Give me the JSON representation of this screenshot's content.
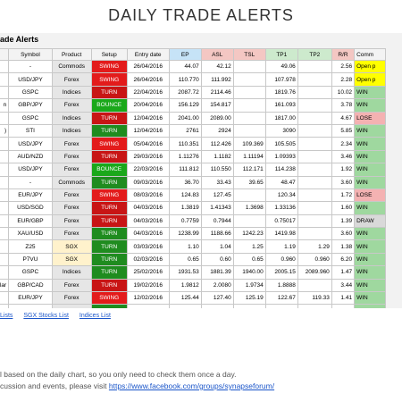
{
  "page": {
    "title": "DAILY TRADE ALERTS"
  },
  "sheet": {
    "title": "ade Alerts",
    "headers": {
      "symbol": "Symbol",
      "product": "Product",
      "setup": "Setup",
      "entry_date": "Entry date",
      "ep": "EP",
      "asl": "ASL",
      "tsl": "TSL",
      "tp1": "TP1",
      "tp2": "TP2",
      "rr": "R/R",
      "comments": "Comm"
    },
    "rows": [
      {
        "name": "",
        "symbol": "-",
        "product": "Commods",
        "setup": "SWING",
        "date": "26/04/2016",
        "ep": "44.07",
        "asl": "42.12",
        "tsl": "",
        "tp1": "49.06",
        "tp2": "",
        "rr": "2.56",
        "comment": "Open p",
        "ctype": "open",
        "stype": "swing",
        "ptype": "forex"
      },
      {
        "name": "",
        "symbol": "USD/JPY",
        "product": "Forex",
        "setup": "SWING",
        "date": "26/04/2016",
        "ep": "110.770",
        "asl": "111.992",
        "tsl": "",
        "tp1": "107.978",
        "tp2": "",
        "rr": "2.28",
        "comment": "Open p",
        "ctype": "open",
        "stype": "swing",
        "ptype": "forex"
      },
      {
        "name": "",
        "symbol": "GSPC",
        "product": "Indices",
        "setup": "TURN",
        "date": "22/04/2016",
        "ep": "2087.72",
        "asl": "2114.46",
        "tsl": "",
        "tp1": "1819.76",
        "tp2": "",
        "rr": "10.02",
        "comment": "WIN",
        "ctype": "win",
        "stype": "turn",
        "ptype": "indices"
      },
      {
        "name": "n",
        "symbol": "GBP/JPY",
        "product": "Forex",
        "setup": "BOUNCE",
        "date": "20/04/2016",
        "ep": "156.129",
        "asl": "154.817",
        "tsl": "",
        "tp1": "161.093",
        "tp2": "",
        "rr": "3.78",
        "comment": "WIN",
        "ctype": "win",
        "stype": "bounce",
        "ptype": "forex"
      },
      {
        "name": "",
        "symbol": "GSPC",
        "product": "Indices",
        "setup": "TURN",
        "date": "12/04/2016",
        "ep": "2041.00",
        "asl": "2089.00",
        "tsl": "",
        "tp1": "1817.00",
        "tp2": "",
        "rr": "4.67",
        "comment": "LOSE",
        "ctype": "lose",
        "stype": "turn",
        "ptype": "indices"
      },
      {
        "name": ")",
        "symbol": "STI",
        "product": "Indices",
        "setup": "TURN",
        "date": "12/04/2016",
        "ep": "2761",
        "asl": "2924",
        "tsl": "",
        "tp1": "3090",
        "tp2": "",
        "rr": "5.85",
        "comment": "WIN",
        "ctype": "win",
        "stype": "turng",
        "ptype": "indices"
      },
      {
        "name": "",
        "symbol": "USD/JPY",
        "product": "Forex",
        "setup": "SWING",
        "date": "05/04/2016",
        "ep": "110.351",
        "asl": "112.426",
        "tsl": "109.369",
        "tp1": "105.505",
        "tp2": "",
        "rr": "2.34",
        "comment": "WIN",
        "ctype": "win",
        "stype": "swing",
        "ptype": "forex"
      },
      {
        "name": "",
        "symbol": "AUD/NZD",
        "product": "Forex",
        "setup": "TURN",
        "date": "29/03/2016",
        "ep": "1.11276",
        "asl": "1.1182",
        "tsl": "1.11194",
        "tp1": "1.09393",
        "tp2": "",
        "rr": "3.46",
        "comment": "WIN",
        "ctype": "win",
        "stype": "turn",
        "ptype": "forex"
      },
      {
        "name": "",
        "symbol": "USD/JPY",
        "product": "Forex",
        "setup": "BOUNCE",
        "date": "22/03/2016",
        "ep": "111.812",
        "asl": "110.550",
        "tsl": "112.171",
        "tp1": "114.238",
        "tp2": "",
        "rr": "1.92",
        "comment": "WIN",
        "ctype": "win",
        "stype": "bounce",
        "ptype": "forex"
      },
      {
        "name": "",
        "symbol": "-",
        "product": "Commods",
        "setup": "TURN",
        "date": "09/03/2016",
        "ep": "36.70",
        "asl": "33.43",
        "tsl": "39.65",
        "tp1": "48.47",
        "tp2": "",
        "rr": "3.60",
        "comment": "WIN",
        "ctype": "win",
        "stype": "turng",
        "ptype": "forex"
      },
      {
        "name": "",
        "symbol": "EUR/JPY",
        "product": "Forex",
        "setup": "SWING",
        "date": "08/03/2016",
        "ep": "124.83",
        "asl": "127.45",
        "tsl": "",
        "tp1": "120.34",
        "tp2": "",
        "rr": "1.72",
        "comment": "LOSE",
        "ctype": "lose",
        "stype": "swing",
        "ptype": "forex"
      },
      {
        "name": "",
        "symbol": "USD/SGD",
        "product": "Forex",
        "setup": "TURN",
        "date": "04/03/2016",
        "ep": "1.3819",
        "asl": "1.41343",
        "tsl": "1.3698",
        "tp1": "1.33136",
        "tp2": "",
        "rr": "1.60",
        "comment": "WIN",
        "ctype": "win",
        "stype": "turn",
        "ptype": "forex"
      },
      {
        "name": "",
        "symbol": "EUR/GBP",
        "product": "Forex",
        "setup": "TURN",
        "date": "04/03/2016",
        "ep": "0.7759",
        "asl": "0.7944",
        "tsl": "",
        "tp1": "0.75017",
        "tp2": "",
        "rr": "1.39",
        "comment": "DRAW",
        "ctype": "draw",
        "stype": "turn",
        "ptype": "forex"
      },
      {
        "name": "",
        "symbol": "XAU/USD",
        "product": "Forex",
        "setup": "TURN",
        "date": "04/03/2016",
        "ep": "1238.99",
        "asl": "1188.66",
        "tsl": "1242.23",
        "tp1": "1419.98",
        "tp2": "",
        "rr": "3.60",
        "comment": "WIN",
        "ctype": "win",
        "stype": "turng",
        "ptype": "forex"
      },
      {
        "name": "",
        "symbol": "Z25",
        "product": "SGX",
        "setup": "TURN",
        "date": "03/03/2016",
        "ep": "1.10",
        "asl": "1.04",
        "tsl": "1.25",
        "tp1": "1.19",
        "tp2": "1.29",
        "rr": "1.38",
        "comment": "WIN",
        "ctype": "win",
        "stype": "turng",
        "ptype": "sgx"
      },
      {
        "name": "",
        "symbol": "P7VU",
        "product": "SGX",
        "setup": "TURN",
        "date": "02/03/2016",
        "ep": "0.65",
        "asl": "0.60",
        "tsl": "0.65",
        "tp1": "0.960",
        "tp2": "0.960",
        "rr": "6.20",
        "comment": "WIN",
        "ctype": "win",
        "stype": "turng",
        "ptype": "sgx"
      },
      {
        "name": "",
        "symbol": "GSPC",
        "product": "Indices",
        "setup": "TURN",
        "date": "25/02/2016",
        "ep": "1931.53",
        "asl": "1881.39",
        "tsl": "1940.00",
        "tp1": "2005.15",
        "tp2": "2089.960",
        "rr": "1.47",
        "comment": "WIN",
        "ctype": "win",
        "stype": "turng",
        "ptype": "indices"
      },
      {
        "name": "ollar",
        "symbol": "GBP/CAD",
        "product": "Forex",
        "setup": "TURN",
        "date": "19/02/2016",
        "ep": "1.9812",
        "asl": "2.0080",
        "tsl": "1.9734",
        "tp1": "1.8888",
        "tp2": "",
        "rr": "3.44",
        "comment": "WIN",
        "ctype": "win",
        "stype": "turn",
        "ptype": "forex"
      },
      {
        "name": "",
        "symbol": "EUR/JPY",
        "product": "Forex",
        "setup": "SWING",
        "date": "12/02/2016",
        "ep": "125.44",
        "asl": "127.40",
        "tsl": "125.19",
        "tp1": "122.67",
        "tp2": "119.33",
        "rr": "1.41",
        "comment": "WIN",
        "ctype": "win",
        "stype": "swing",
        "ptype": "forex"
      },
      {
        "name": "",
        "symbol": "XAU/USD",
        "product": "Forex",
        "setup": "TURN",
        "date": "10/02/2016",
        "ep": "1211.45",
        "asl": "1177.40",
        "tsl": "1211.85",
        "tp1": "1299.47",
        "tp2": "",
        "rr": "1.28",
        "comment": "WIN",
        "ctype": "win",
        "stype": "turng",
        "ptype": "forex"
      }
    ]
  },
  "tabs": [
    "Lists",
    "SGX Stocks List",
    "Indices List"
  ],
  "notes": {
    "line1": "l based on the daily chart, so you only need to check them once a day.",
    "line2_prefix": "cussion and events, please visit ",
    "link": "https://www.facebook.com/groups/synapseforum/"
  }
}
